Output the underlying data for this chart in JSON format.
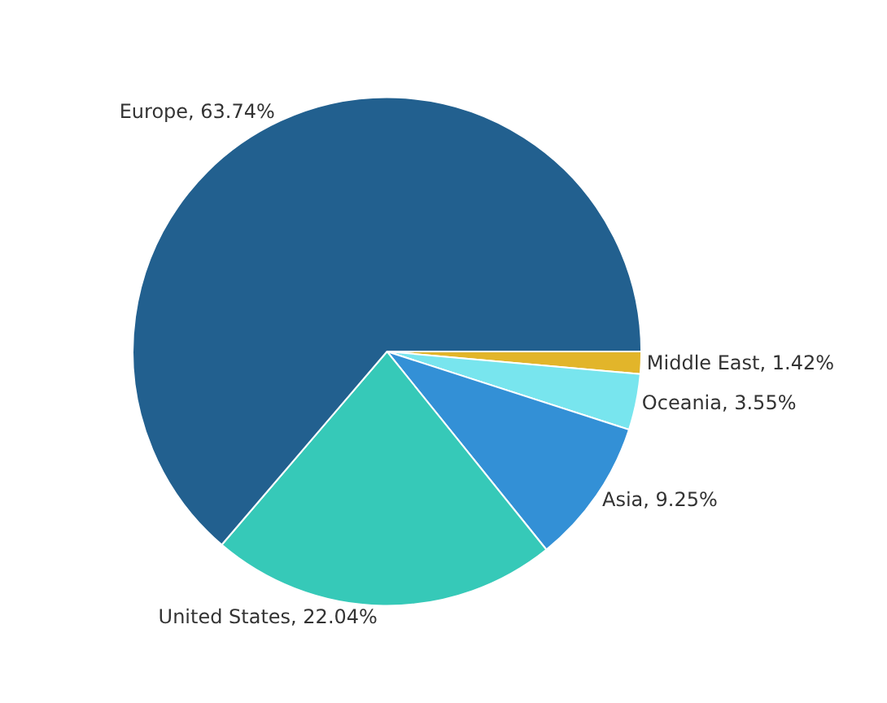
{
  "chart_data": {
    "type": "pie",
    "categories": [
      "Middle East",
      "Oceania",
      "Asia",
      "United States",
      "Europe"
    ],
    "values": [
      1.42,
      3.55,
      9.25,
      22.04,
      63.74
    ],
    "colors": [
      "#e2b52a",
      "#78e5ee",
      "#3390d6",
      "#36c9b8",
      "#22608f"
    ],
    "value_labels": [
      "1.42%",
      "3.55%",
      "9.25%",
      "22.04%",
      "63.74%"
    ],
    "legend": false
  }
}
